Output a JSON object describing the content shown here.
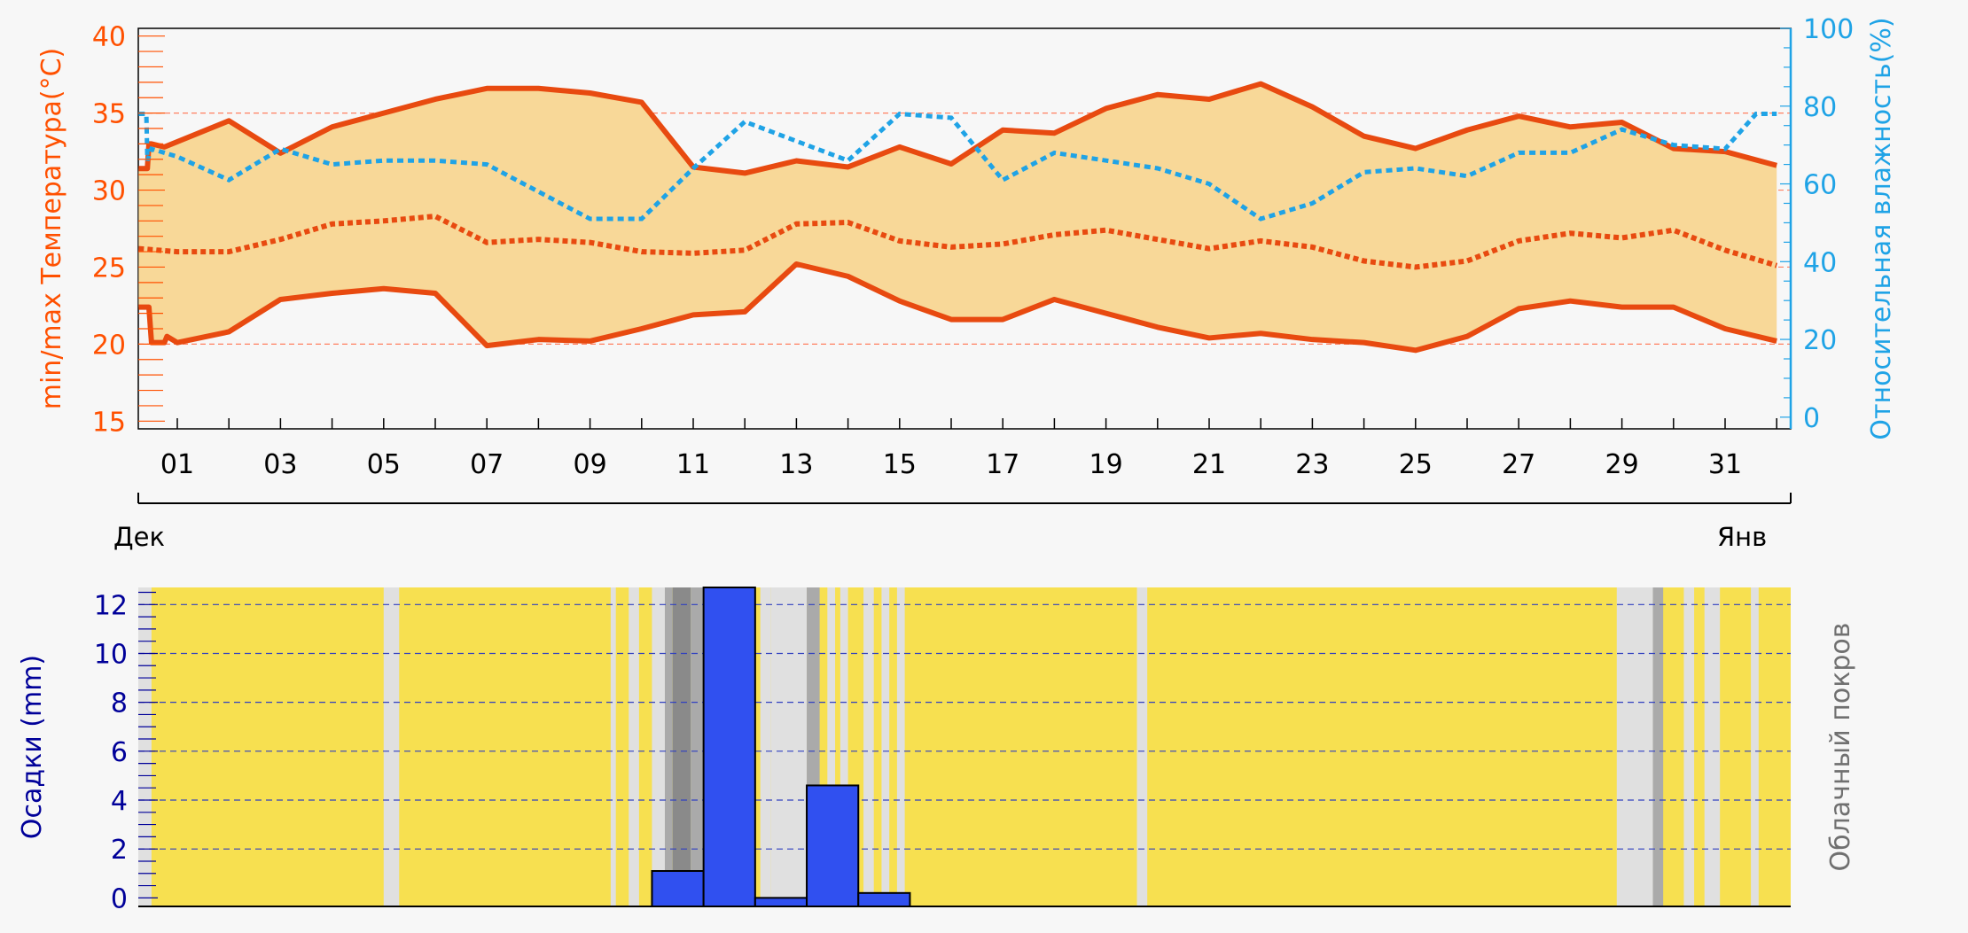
{
  "colors": {
    "temp": "#ff5000",
    "temp_dark": "#e84a10",
    "band": "#f8d898",
    "humidity": "#1fa3e6",
    "precip": "#3050f0",
    "precip_axis": "#000099",
    "cloud_clear": "#f7e050",
    "cloud_label": "#707070",
    "grid_temp": "#ff8060",
    "grid_precip": "#3040c0"
  },
  "labels": {
    "temp_axis": "min/max Температура(°C)",
    "humidity_axis": "Относительная влажность(%)",
    "precip_axis": "Осадки (mm)",
    "cloud_axis": "Облачный покров",
    "month_start": "Дек",
    "month_end": "Янв"
  },
  "chart_data": [
    {
      "type": "line",
      "x_unit": "day of December",
      "x_ticks": [
        "01",
        "03",
        "05",
        "07",
        "09",
        "11",
        "13",
        "15",
        "17",
        "19",
        "21",
        "23",
        "25",
        "27",
        "29",
        "31"
      ],
      "y_left": {
        "label": "min/max Температура(°C)",
        "ticks": [
          15,
          20,
          25,
          30,
          35,
          40
        ],
        "range": [
          14.5,
          40.5
        ]
      },
      "y_right": {
        "label": "Относительная влажность(%)",
        "ticks": [
          0,
          20,
          40,
          60,
          80,
          100
        ],
        "range": [
          -3,
          100
        ]
      },
      "grid": true,
      "series": [
        {
          "role": "max temperature",
          "x": [
            0.25,
            0.42,
            0.45,
            0.5,
            0.75,
            2,
            3,
            4,
            5,
            6,
            7,
            8,
            9,
            10,
            11,
            12,
            13,
            14,
            15,
            16,
            17,
            18,
            19,
            20,
            21,
            22,
            23,
            24,
            25,
            26,
            27,
            28,
            29,
            30,
            31,
            32
          ],
          "y": [
            31.4,
            31.4,
            33.0,
            33.0,
            32.8,
            34.5,
            32.4,
            34.1,
            35.0,
            35.9,
            36.6,
            36.6,
            36.3,
            35.7,
            31.5,
            31.1,
            31.9,
            31.5,
            32.8,
            31.7,
            33.9,
            33.7,
            35.3,
            36.2,
            35.9,
            36.9,
            35.4,
            33.5,
            32.7,
            33.9,
            34.8,
            34.1,
            34.4,
            32.7,
            32.5,
            31.6
          ]
        },
        {
          "role": "mean temperature",
          "x": [
            0.25,
            1,
            2,
            3,
            4,
            5,
            6,
            7,
            8,
            9,
            10,
            11,
            12,
            13,
            14,
            15,
            16,
            17,
            18,
            19,
            20,
            21,
            22,
            23,
            24,
            25,
            26,
            27,
            28,
            29,
            30,
            31,
            32
          ],
          "y": [
            26.2,
            26.0,
            26.0,
            26.8,
            27.8,
            28.0,
            28.3,
            26.6,
            26.8,
            26.6,
            26.0,
            25.9,
            26.1,
            27.8,
            27.9,
            26.7,
            26.3,
            26.5,
            27.1,
            27.4,
            26.8,
            26.2,
            26.7,
            26.3,
            25.4,
            25.0,
            25.4,
            26.7,
            27.2,
            26.9,
            27.4,
            26.1,
            25.1
          ]
        },
        {
          "role": "min temperature",
          "x": [
            0.25,
            0.45,
            0.5,
            0.75,
            0.8,
            1,
            2,
            3,
            4,
            5,
            6,
            7,
            8,
            9,
            10,
            11,
            12,
            13,
            14,
            15,
            16,
            17,
            18,
            19,
            20,
            21,
            22,
            23,
            24,
            25,
            26,
            27,
            28,
            29,
            30,
            31,
            32
          ],
          "y": [
            22.4,
            22.4,
            20.1,
            20.1,
            20.5,
            20.1,
            20.8,
            22.9,
            23.3,
            23.6,
            23.3,
            19.9,
            20.3,
            20.2,
            21.0,
            21.9,
            22.1,
            25.2,
            24.4,
            22.8,
            21.6,
            21.6,
            22.9,
            22.0,
            21.1,
            20.4,
            20.7,
            20.3,
            20.1,
            19.6,
            20.5,
            22.3,
            22.8,
            22.4,
            22.4,
            21.0,
            20.2
          ]
        },
        {
          "role": "relative humidity (%)",
          "x": [
            0.25,
            0.4,
            0.42,
            0.5,
            1,
            2,
            3,
            4,
            5,
            6,
            7,
            8,
            9,
            10,
            11,
            12,
            13,
            14,
            15,
            16,
            17,
            18,
            19,
            20,
            21,
            22,
            23,
            24,
            25,
            26,
            27,
            28,
            29,
            30,
            31,
            31.6,
            32
          ],
          "y": [
            78,
            78,
            66,
            69,
            67,
            61,
            69,
            65,
            66,
            66,
            65,
            58,
            51,
            51,
            64,
            76,
            71,
            66,
            78,
            77,
            61,
            68,
            66,
            64,
            60,
            51,
            55,
            63,
            64,
            62,
            68,
            68,
            74,
            70,
            69,
            78,
            78
          ]
        }
      ]
    },
    {
      "type": "bar",
      "x_unit": "day of December",
      "y": {
        "label": "Осадки (mm)",
        "ticks": [
          0,
          2,
          4,
          6,
          8,
          10,
          12
        ],
        "range": [
          -0.35,
          12.7
        ]
      },
      "grid": true,
      "bars": [
        {
          "x_start": 10.2,
          "x_end": 11.2,
          "value": 1.1
        },
        {
          "x_start": 11.2,
          "x_end": 12.2,
          "value": 12.7
        },
        {
          "x_start": 12.2,
          "x_end": 13.2,
          "value": 0.0
        },
        {
          "x_start": 13.2,
          "x_end": 14.2,
          "value": 4.6
        },
        {
          "x_start": 14.2,
          "x_end": 15.2,
          "value": 0.2
        }
      ],
      "cloud_cover_bands": [
        {
          "x_start": 0.0,
          "x_end": 0.5,
          "tone": "light"
        },
        {
          "x_start": 5.0,
          "x_end": 5.3,
          "tone": "light"
        },
        {
          "x_start": 9.4,
          "x_end": 9.5,
          "tone": "light"
        },
        {
          "x_start": 9.75,
          "x_end": 9.95,
          "tone": "light"
        },
        {
          "x_start": 10.2,
          "x_end": 10.45,
          "tone": "light"
        },
        {
          "x_start": 10.45,
          "x_end": 10.6,
          "tone": "mid"
        },
        {
          "x_start": 10.6,
          "x_end": 10.95,
          "tone": "dark"
        },
        {
          "x_start": 10.95,
          "x_end": 11.2,
          "tone": "mid"
        },
        {
          "x_start": 12.3,
          "x_end": 12.5,
          "tone": "light"
        },
        {
          "x_start": 12.5,
          "x_end": 13.2,
          "tone": "light"
        },
        {
          "x_start": 13.2,
          "x_end": 13.45,
          "tone": "mid"
        },
        {
          "x_start": 13.6,
          "x_end": 13.75,
          "tone": "light"
        },
        {
          "x_start": 13.85,
          "x_end": 14.0,
          "tone": "light"
        },
        {
          "x_start": 14.3,
          "x_end": 14.5,
          "tone": "light"
        },
        {
          "x_start": 14.65,
          "x_end": 14.8,
          "tone": "light"
        },
        {
          "x_start": 14.95,
          "x_end": 15.1,
          "tone": "light"
        },
        {
          "x_start": 19.6,
          "x_end": 19.8,
          "tone": "light"
        },
        {
          "x_start": 28.9,
          "x_end": 29.6,
          "tone": "light"
        },
        {
          "x_start": 29.6,
          "x_end": 29.8,
          "tone": "mid"
        },
        {
          "x_start": 30.2,
          "x_end": 30.4,
          "tone": "light"
        },
        {
          "x_start": 30.6,
          "x_end": 30.9,
          "tone": "light"
        },
        {
          "x_start": 31.5,
          "x_end": 31.65,
          "tone": "light"
        }
      ]
    }
  ]
}
